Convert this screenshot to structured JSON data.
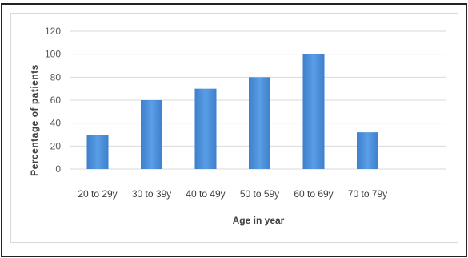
{
  "chart_data": {
    "type": "bar",
    "categories": [
      "20 to 29y",
      "30 to 39y",
      "40 to 49y",
      "50 to 59y",
      "60 to 69y",
      "70 to 79y"
    ],
    "values": [
      30,
      60,
      70,
      80,
      100,
      32
    ],
    "xlabel": "Age in year",
    "ylabel": "Percentage of patients",
    "ylim": [
      0,
      120
    ],
    "yticks": [
      0,
      20,
      40,
      60,
      80,
      100,
      120
    ],
    "grid": true,
    "bar_color": "#4a8fd6"
  }
}
